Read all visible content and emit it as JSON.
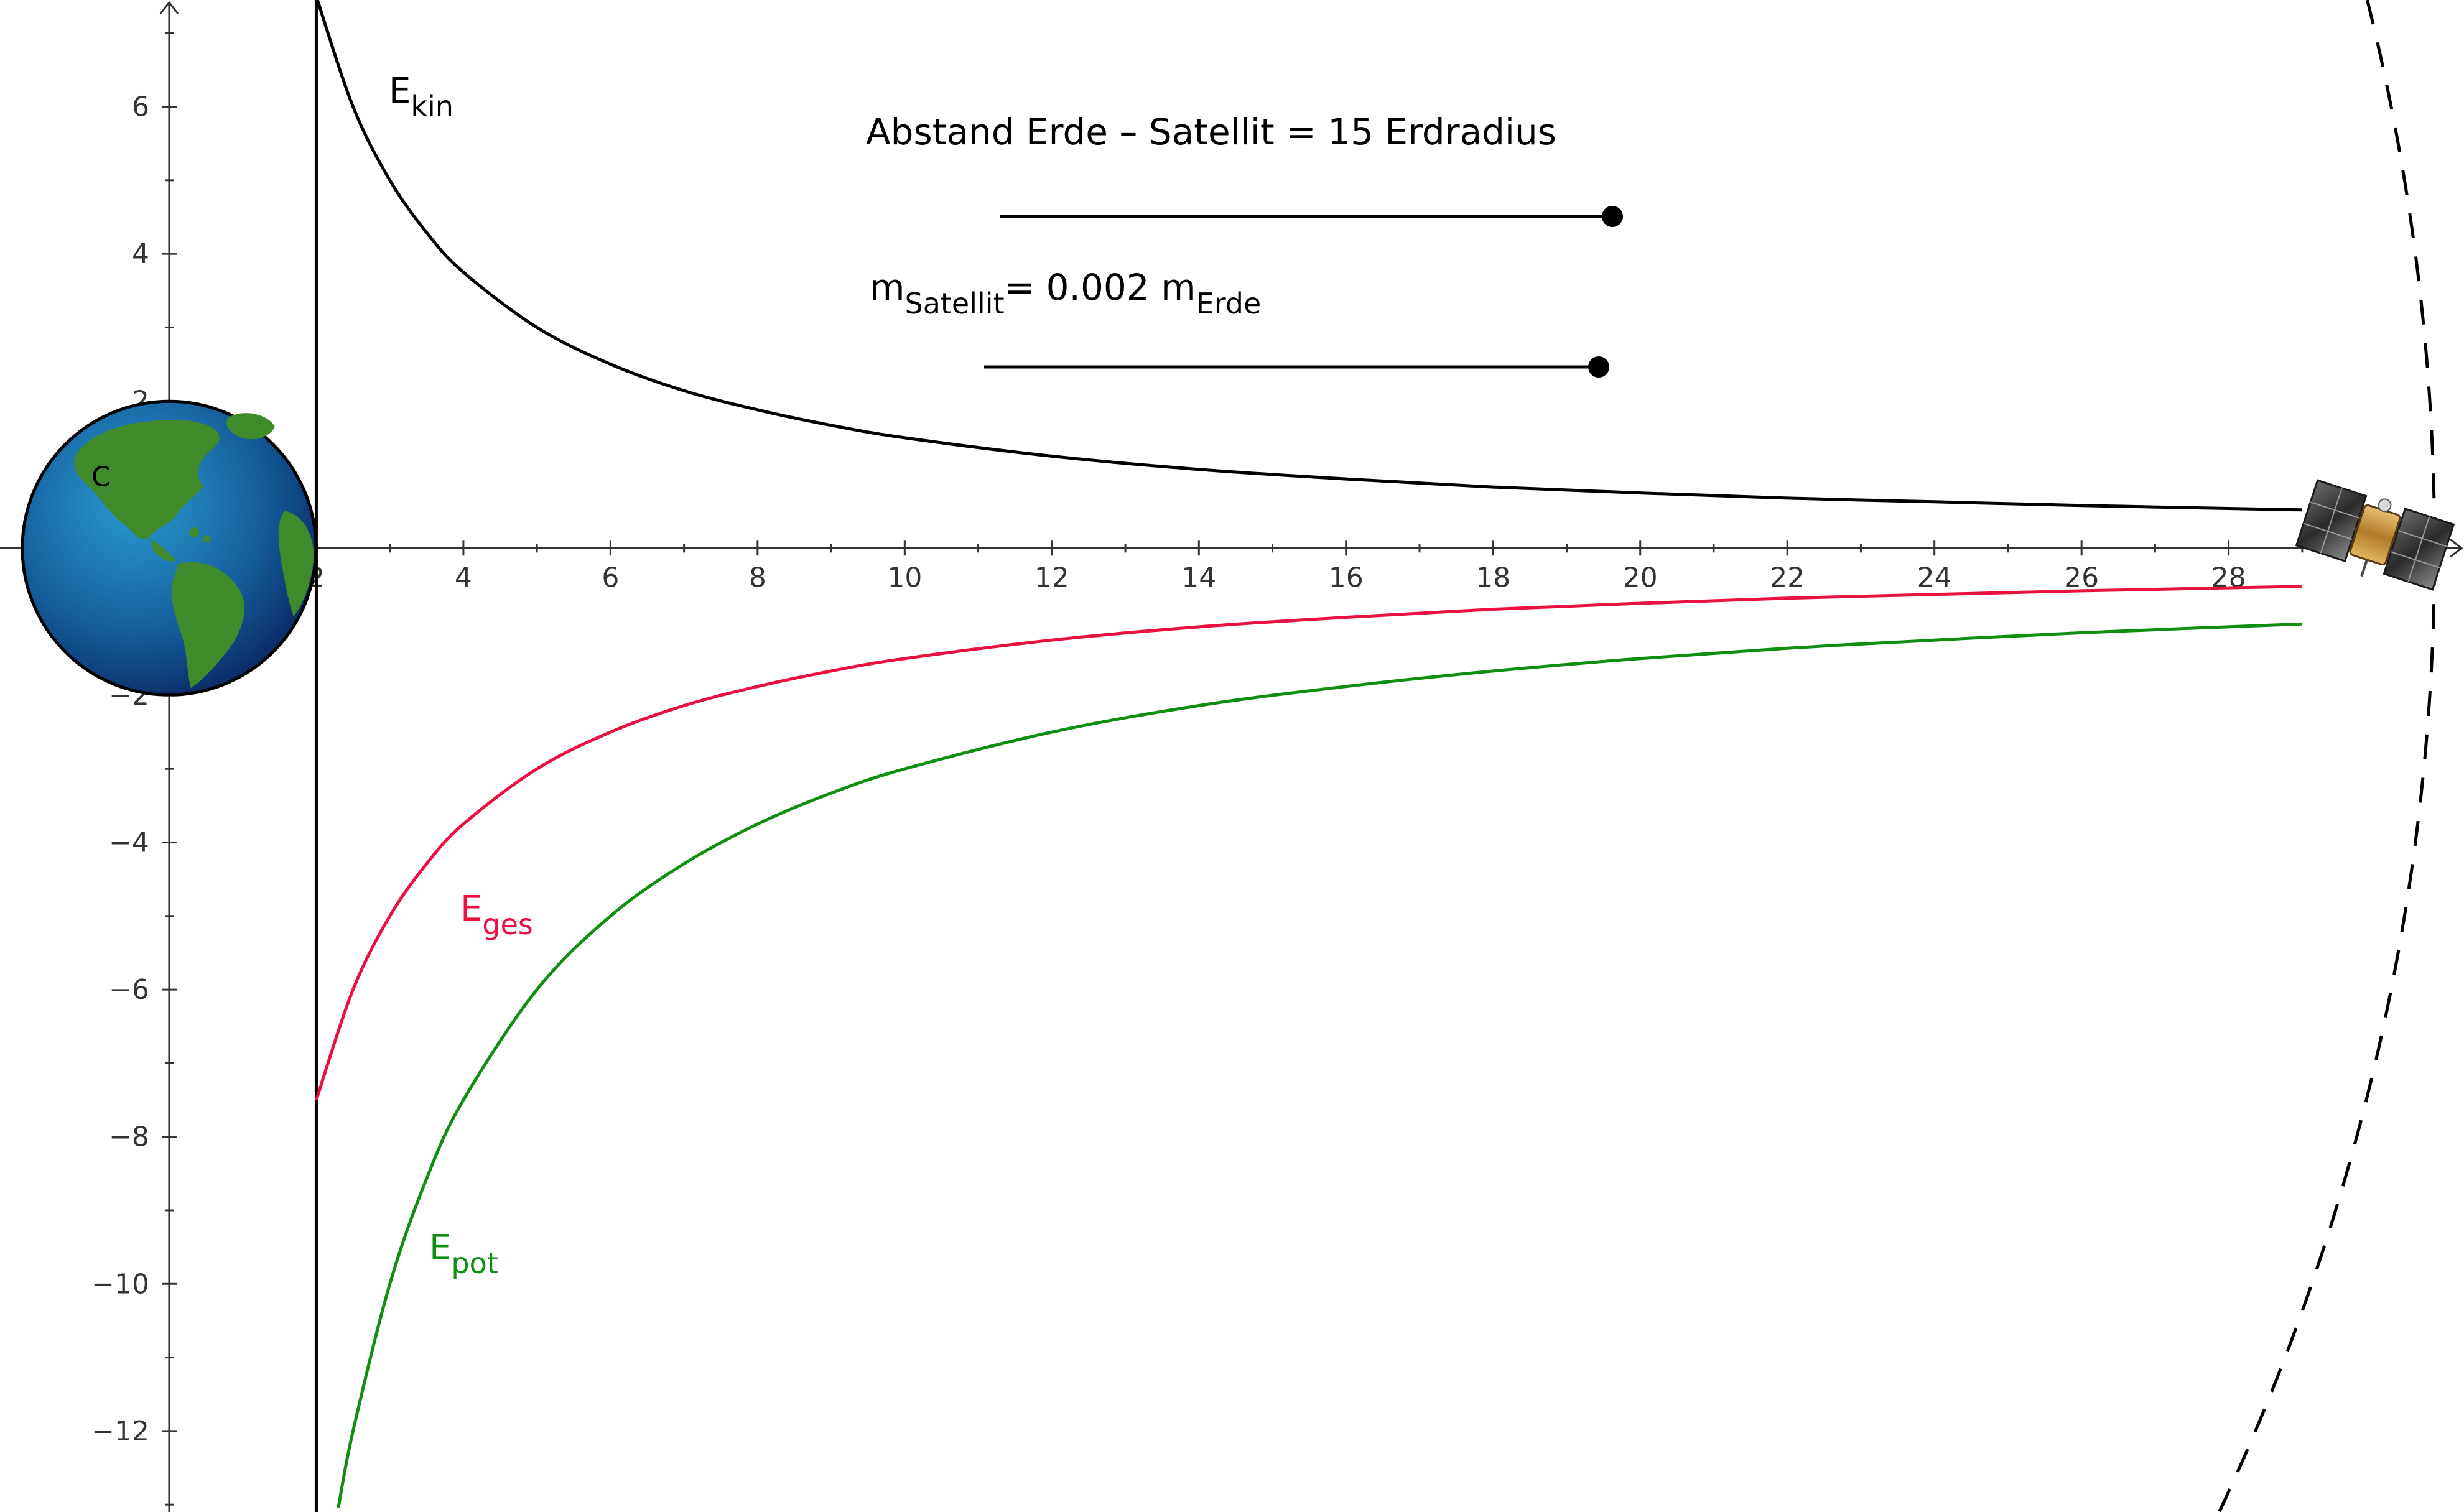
{
  "chart_data": {
    "type": "line",
    "title": "",
    "xlabel": "",
    "ylabel": "",
    "xlim": [
      -2.3,
      31.2
    ],
    "ylim": [
      -13.1,
      7.45
    ],
    "x_ticks": [
      2,
      4,
      6,
      8,
      10,
      12,
      14,
      16,
      18,
      20,
      22,
      24,
      26,
      28
    ],
    "x_tick_labels": [
      "2",
      "4",
      "6",
      "8",
      "10",
      "12",
      "14",
      "16",
      "18",
      "20",
      "22",
      "24",
      "26",
      "28"
    ],
    "y_ticks": [
      6,
      4,
      2,
      -2,
      -4,
      -6,
      -8,
      -10,
      -12
    ],
    "y_tick_labels": [
      "6",
      "4",
      "2",
      "−2",
      "−4",
      "−6",
      "−8",
      "−10",
      "−12"
    ],
    "grid": false,
    "series": [
      {
        "name": "E_kin",
        "label_main": "E",
        "label_sub": "kin",
        "color": "#000000",
        "x": [
          2,
          2.5,
          3,
          3.5,
          4,
          5,
          6,
          7,
          8,
          9,
          10,
          12,
          14,
          16,
          18,
          20,
          22,
          24,
          26,
          29
        ],
        "values": [
          7.5,
          6.0,
          5.0,
          4.29,
          3.75,
          3.0,
          2.5,
          2.14,
          1.88,
          1.67,
          1.5,
          1.25,
          1.07,
          0.94,
          0.83,
          0.75,
          0.68,
          0.63,
          0.58,
          0.52
        ]
      },
      {
        "name": "E_ges",
        "label_main": "E",
        "label_sub": "ges",
        "color": "#e8113f",
        "x": [
          2,
          2.5,
          3,
          3.5,
          4,
          5,
          6,
          7,
          8,
          9,
          10,
          12,
          14,
          16,
          18,
          20,
          22,
          24,
          26,
          29
        ],
        "values": [
          -7.5,
          -6.0,
          -5.0,
          -4.29,
          -3.75,
          -3.0,
          -2.5,
          -2.14,
          -1.88,
          -1.67,
          -1.5,
          -1.25,
          -1.07,
          -0.94,
          -0.83,
          -0.75,
          -0.68,
          -0.63,
          -0.58,
          -0.52
        ]
      },
      {
        "name": "E_pot",
        "label_main": "E",
        "label_sub": "pot",
        "color": "#0f8f0f",
        "x": [
          2.3,
          2.5,
          3,
          3.5,
          4,
          5,
          6,
          7,
          8,
          9,
          10,
          12,
          14,
          16,
          18,
          20,
          22,
          24,
          26,
          29
        ],
        "values": [
          -13.04,
          -12.0,
          -10.0,
          -8.57,
          -7.5,
          -6.0,
          -5.0,
          -4.29,
          -3.75,
          -3.33,
          -3.0,
          -2.5,
          -2.14,
          -1.88,
          -1.67,
          -1.5,
          -1.36,
          -1.25,
          -1.15,
          -1.03
        ]
      }
    ],
    "annotations": {
      "distance_text": "Abstand Erde – Satellit  = 15 Erdradius",
      "mass_main": "m",
      "mass_sub1": "Satellit",
      "mass_mid": "= 0.002 m",
      "mass_sub2": "Erde",
      "earth_point_label": "C"
    },
    "sliders": [
      {
        "name": "distance",
        "fraction": 1.0
      },
      {
        "name": "mass",
        "fraction": 1.0
      }
    ],
    "colors": {
      "axis": "#333333",
      "earth_ocean": "#1f6fa8",
      "earth_land": "#3f8a2a",
      "orbit": "#000000"
    },
    "icons": [
      "earth-icon",
      "satellite-icon"
    ]
  }
}
